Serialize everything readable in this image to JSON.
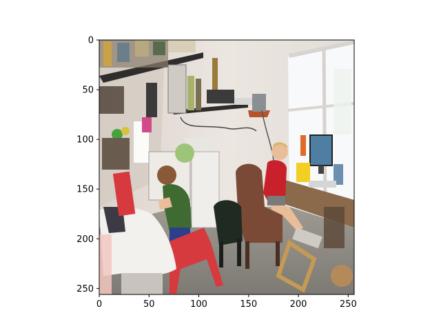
{
  "figure": {
    "x_ticks": [
      "0",
      "50",
      "100",
      "150",
      "200",
      "250"
    ],
    "y_ticks": [
      "0",
      "50",
      "100",
      "150",
      "200",
      "250"
    ],
    "x_range": [
      0,
      256
    ],
    "y_range": [
      0,
      256
    ],
    "y_axis_inverted": true,
    "colors": {
      "wall": "#e9e2dc",
      "window": "#f5f8fb",
      "shelf": "#2f2d2b",
      "floor": "#8f8c84",
      "chair_red": "#d63a3e",
      "chair_brown": "#7b4a36",
      "chair_dark": "#1f2a22",
      "shirt_green": "#3f6b33",
      "shirt_red": "#c8212b",
      "monitor": "#4f7ea3",
      "bucket_yellow": "#f2cf22",
      "cloth_white": "#f3f1ee",
      "skin": "#e9bd9a"
    }
  }
}
